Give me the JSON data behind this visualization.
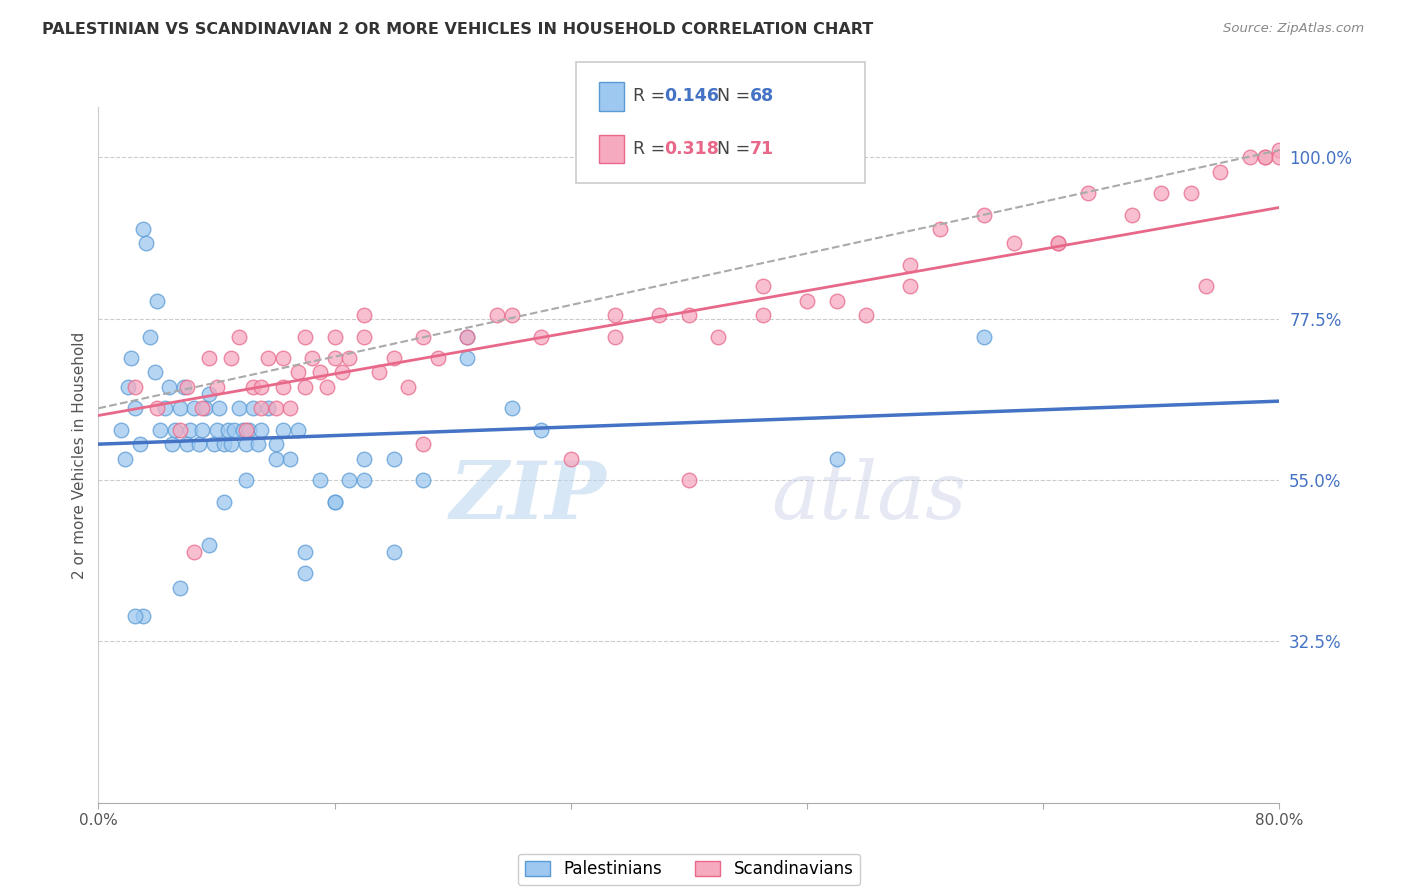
{
  "title": "PALESTINIAN VS SCANDINAVIAN 2 OR MORE VEHICLES IN HOUSEHOLD CORRELATION CHART",
  "source": "Source: ZipAtlas.com",
  "ylabel": "2 or more Vehicles in Household",
  "y_ticks_right": [
    32.5,
    55.0,
    77.5,
    100.0
  ],
  "y_tick_labels_right": [
    "32.5%",
    "55.0%",
    "77.5%",
    "100.0%"
  ],
  "legend_blue_R": "0.146",
  "legend_blue_N": "68",
  "legend_pink_R": "0.318",
  "legend_pink_N": "71",
  "legend_label_blue": "Palestinians",
  "legend_label_pink": "Scandinavians",
  "x_min": 0.0,
  "x_max": 80.0,
  "y_min": 10.0,
  "y_max": 107.0,
  "blue_color": "#9EC8F0",
  "pink_color": "#F5AABF",
  "blue_edge_color": "#5B9BD5",
  "pink_edge_color": "#E8698A",
  "blue_line_color": "#4472C4",
  "pink_line_color": "#E8688A",
  "dashed_line_color": "#AAAAAA",
  "watermark": "ZIPatlas",
  "watermark_zip_color": "#C0D8F0",
  "watermark_atlas_color": "#D0D8F0",
  "background_color": "#FFFFFF",
  "blue_trend_x0": 0.0,
  "blue_trend_y0": 60.0,
  "blue_trend_x1": 80.0,
  "blue_trend_y1": 66.0,
  "pink_trend_x0": 0.0,
  "pink_trend_y0": 64.0,
  "pink_trend_x1": 80.0,
  "pink_trend_y1": 93.0,
  "dash_x0": 0.0,
  "dash_y0": 65.0,
  "dash_x1": 80.0,
  "dash_y1": 101.0,
  "pal_x": [
    1.5,
    1.8,
    2.0,
    2.2,
    2.5,
    2.8,
    3.0,
    3.2,
    3.5,
    3.8,
    4.0,
    4.2,
    4.5,
    4.8,
    5.0,
    5.2,
    5.5,
    5.8,
    6.0,
    6.2,
    6.5,
    6.8,
    7.0,
    7.2,
    7.5,
    7.8,
    8.0,
    8.2,
    8.5,
    8.8,
    9.0,
    9.2,
    9.5,
    9.8,
    10.0,
    10.2,
    10.5,
    10.8,
    11.0,
    11.5,
    12.0,
    12.5,
    13.0,
    13.5,
    14.0,
    15.0,
    16.0,
    17.0,
    18.0,
    20.0,
    22.0,
    25.0,
    28.0,
    30.0,
    3.0,
    2.5,
    5.5,
    7.5,
    8.5,
    10.0,
    12.0,
    14.0,
    16.0,
    18.0,
    20.0,
    25.0,
    50.0,
    60.0
  ],
  "pal_y": [
    62.0,
    58.0,
    68.0,
    72.0,
    65.0,
    60.0,
    90.0,
    88.0,
    75.0,
    70.0,
    80.0,
    62.0,
    65.0,
    68.0,
    60.0,
    62.0,
    65.0,
    68.0,
    60.0,
    62.0,
    65.0,
    60.0,
    62.0,
    65.0,
    67.0,
    60.0,
    62.0,
    65.0,
    60.0,
    62.0,
    60.0,
    62.0,
    65.0,
    62.0,
    60.0,
    62.0,
    65.0,
    60.0,
    62.0,
    65.0,
    60.0,
    62.0,
    58.0,
    62.0,
    45.0,
    55.0,
    52.0,
    55.0,
    58.0,
    45.0,
    55.0,
    72.0,
    65.0,
    62.0,
    36.0,
    36.0,
    40.0,
    46.0,
    52.0,
    55.0,
    58.0,
    42.0,
    52.0,
    55.0,
    58.0,
    75.0,
    58.0,
    75.0
  ],
  "scan_x": [
    2.5,
    4.0,
    5.5,
    7.0,
    8.0,
    9.0,
    10.0,
    10.5,
    11.0,
    11.5,
    12.0,
    12.5,
    13.0,
    13.5,
    14.0,
    14.5,
    15.0,
    15.5,
    16.0,
    16.5,
    17.0,
    18.0,
    19.0,
    20.0,
    21.0,
    22.0,
    23.0,
    25.0,
    27.0,
    30.0,
    32.0,
    35.0,
    38.0,
    40.0,
    42.0,
    45.0,
    48.0,
    50.0,
    52.0,
    55.0,
    57.0,
    60.0,
    62.0,
    65.0,
    67.0,
    70.0,
    72.0,
    74.0,
    76.0,
    78.0,
    79.0,
    80.0,
    6.0,
    7.5,
    9.5,
    11.0,
    12.5,
    14.0,
    16.0,
    18.0,
    22.0,
    28.0,
    35.0,
    45.0,
    55.0,
    65.0,
    75.0,
    79.0,
    80.0,
    40.0,
    6.5
  ],
  "scan_y": [
    68.0,
    65.0,
    62.0,
    65.0,
    68.0,
    72.0,
    62.0,
    68.0,
    65.0,
    72.0,
    65.0,
    68.0,
    65.0,
    70.0,
    68.0,
    72.0,
    70.0,
    68.0,
    72.0,
    70.0,
    72.0,
    75.0,
    70.0,
    72.0,
    68.0,
    60.0,
    72.0,
    75.0,
    78.0,
    75.0,
    58.0,
    75.0,
    78.0,
    78.0,
    75.0,
    78.0,
    80.0,
    80.0,
    78.0,
    82.0,
    90.0,
    92.0,
    88.0,
    88.0,
    95.0,
    92.0,
    95.0,
    95.0,
    98.0,
    100.0,
    100.0,
    101.0,
    68.0,
    72.0,
    75.0,
    68.0,
    72.0,
    75.0,
    75.0,
    78.0,
    75.0,
    78.0,
    78.0,
    82.0,
    85.0,
    88.0,
    82.0,
    100.0,
    100.0,
    55.0,
    45.0
  ]
}
